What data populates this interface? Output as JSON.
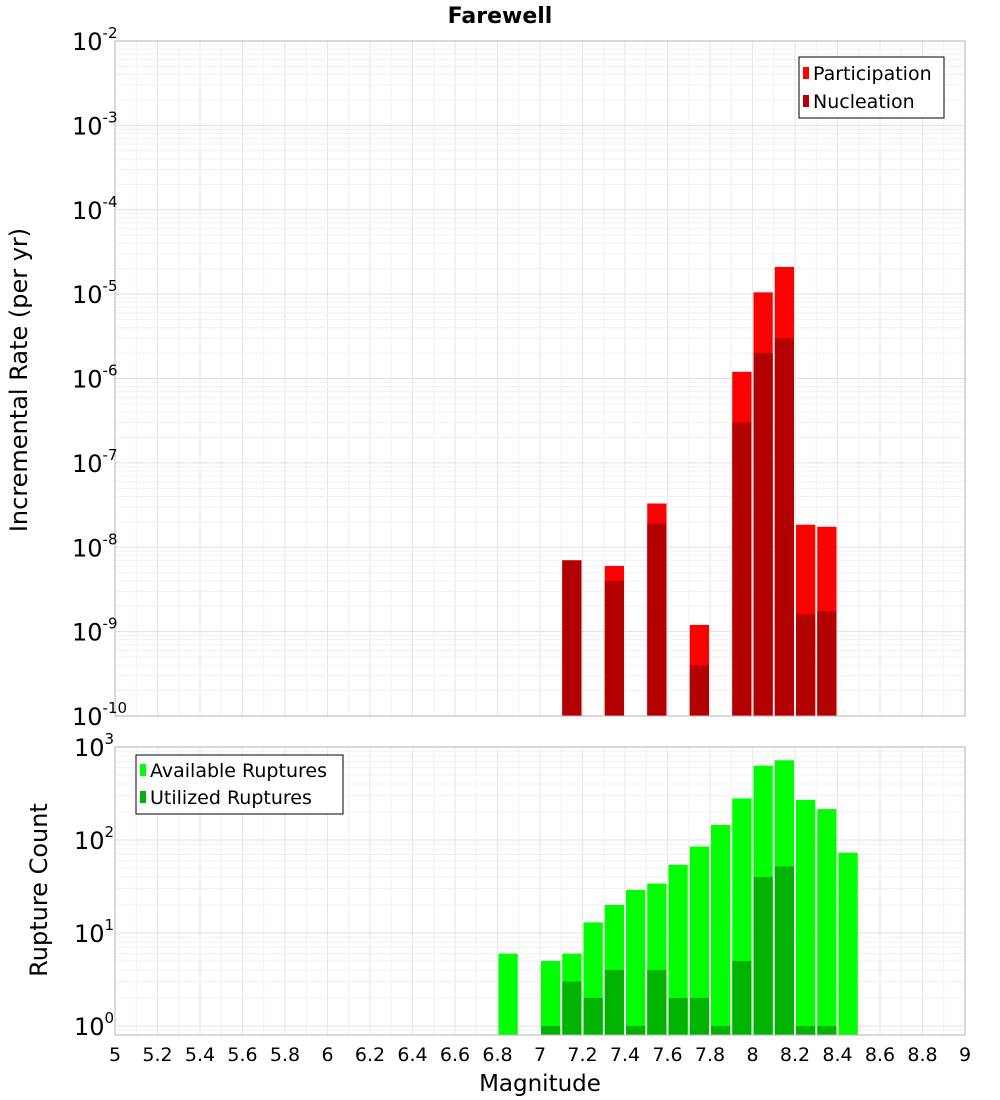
{
  "chart_data": [
    {
      "type": "bar",
      "title": "Farewell",
      "xlabel": "Magnitude",
      "ylabel": "Incremental Rate (per yr)",
      "yscale": "log",
      "xlim": [
        5,
        9
      ],
      "ylim": [
        1e-10,
        0.01
      ],
      "y_tick_exponents": [
        "-2",
        "-3",
        "-4",
        "-5",
        "-6",
        "-7",
        "-8",
        "-9",
        "-10"
      ],
      "grid": true,
      "legend_position": "top-right",
      "x": [
        7.15,
        7.35,
        7.55,
        7.75,
        7.95,
        8.05,
        8.15,
        8.25,
        8.35
      ],
      "series": [
        {
          "name": "Participation",
          "color": "#ff0000",
          "values": [
            7e-09,
            6e-09,
            3.3e-08,
            1.2e-09,
            1.2e-06,
            1.05e-05,
            2.1e-05,
            1.85e-08,
            1.75e-08
          ]
        },
        {
          "name": "Nucleation",
          "color": "#b30000",
          "values": [
            7e-09,
            4e-09,
            1.9e-08,
            4e-10,
            3e-07,
            2e-06,
            3e-06,
            1.6e-09,
            1.75e-09
          ]
        }
      ]
    },
    {
      "type": "bar",
      "title": "",
      "xlabel": "Magnitude",
      "ylabel": "Rupture Count",
      "yscale": "log",
      "xlim": [
        5,
        9
      ],
      "ylim": [
        0.8,
        1000
      ],
      "y_tick_exponents": [
        "3",
        "2",
        "1",
        "0"
      ],
      "x_ticks": [
        "5",
        "5.2",
        "5.4",
        "5.6",
        "5.8",
        "6",
        "6.2",
        "6.4",
        "6.6",
        "6.8",
        "7",
        "7.2",
        "7.4",
        "7.6",
        "7.8",
        "8",
        "8.2",
        "8.4",
        "8.6",
        "8.8",
        "9"
      ],
      "grid": true,
      "legend_position": "top-left",
      "x": [
        6.85,
        7.05,
        7.15,
        7.25,
        7.35,
        7.45,
        7.55,
        7.65,
        7.75,
        7.85,
        7.95,
        8.05,
        8.15,
        8.25,
        8.35,
        8.45
      ],
      "series": [
        {
          "name": "Available Ruptures",
          "color": "#00ff00",
          "values": [
            6,
            5,
            6,
            13,
            20,
            29,
            34,
            54,
            85,
            145,
            280,
            630,
            720,
            270,
            215,
            73
          ]
        },
        {
          "name": "Utilized Ruptures",
          "color": "#00b300",
          "values": [
            0,
            1,
            3,
            2,
            4,
            1,
            4,
            2,
            2,
            1,
            5,
            40,
            52,
            1,
            1,
            0
          ]
        }
      ]
    }
  ]
}
